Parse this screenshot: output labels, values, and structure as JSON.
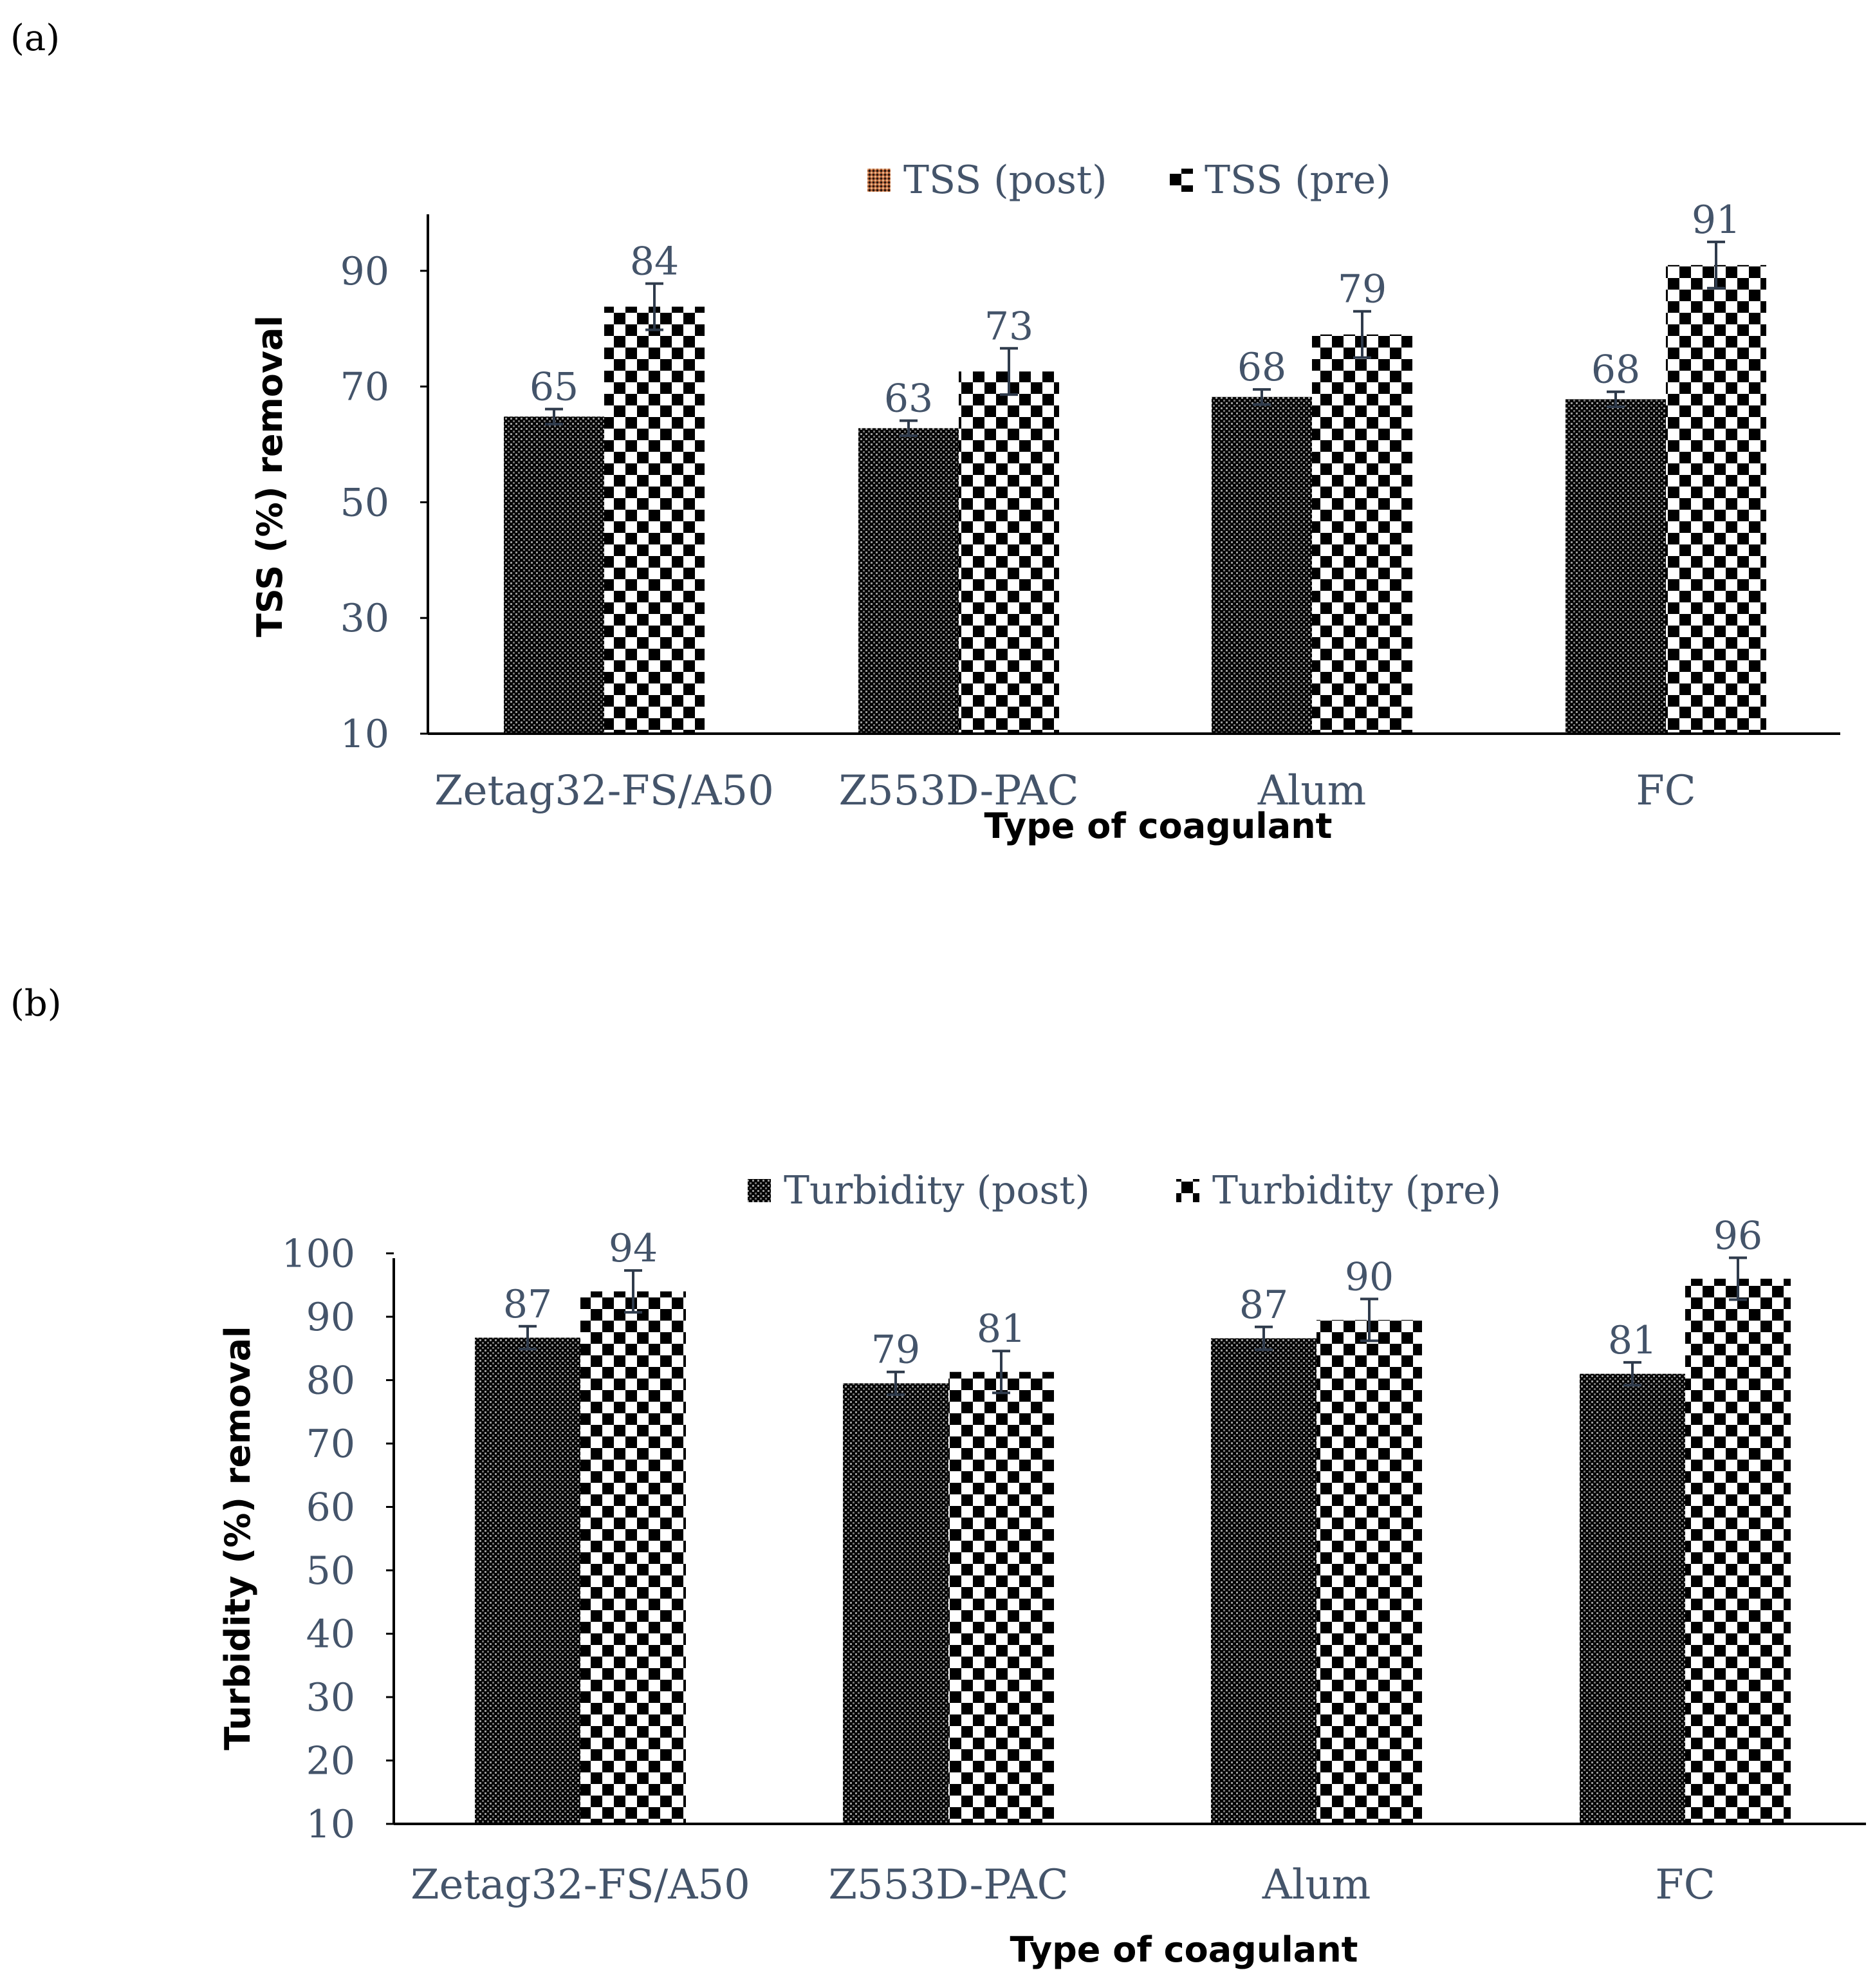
{
  "colors": {
    "dark": "#000000",
    "light": "#ffffff",
    "text": "#44546a",
    "error_bar": "#2f3b4c",
    "legend_post_tss": "#b0603a"
  },
  "chart_data": [
    {
      "type": "bar",
      "panel_label": "(a)",
      "title": "",
      "xlabel": "Type of coagulant",
      "ylabel": "TSS  (%) removal",
      "categories": [
        "Zetag32-FS/A50",
        "Z553D-PAC",
        "Alum",
        "FC"
      ],
      "ylim": [
        10,
        100
      ],
      "yticks": [
        10,
        30,
        50,
        70,
        90
      ],
      "ytick_labels": [
        "10",
        "30",
        "50",
        "70",
        "90"
      ],
      "legend_position": "top-center",
      "series": [
        {
          "name": "TSS (post)",
          "pattern": "fine-dots",
          "values": [
            65,
            63,
            68,
            68
          ],
          "bar_top": [
            64.8,
            62.8,
            68.2,
            67.8
          ],
          "error": [
            1.3,
            1.3,
            1.3,
            1.3
          ],
          "labels": [
            "65",
            "63",
            "68",
            "68"
          ]
        },
        {
          "name": "TSS (pre)",
          "pattern": "checker",
          "values": [
            84,
            73,
            79,
            91
          ],
          "bar_top": [
            83.8,
            72.6,
            79.0,
            91.0
          ],
          "error": [
            4.0,
            4.0,
            4.0,
            4.0
          ],
          "labels": [
            "84",
            "73",
            "79",
            "91"
          ]
        }
      ]
    },
    {
      "type": "bar",
      "panel_label": "(b)",
      "title": "",
      "xlabel": "Type of coagulant",
      "ylabel": "Turbidity   (%) removal",
      "categories": [
        "Zetag32-FS/A50",
        "Z553D-PAC",
        "Alum",
        "FC"
      ],
      "ylim": [
        10,
        100
      ],
      "yticks": [
        10,
        20,
        30,
        40,
        50,
        60,
        70,
        80,
        90,
        100
      ],
      "ytick_labels": [
        "10",
        "20",
        "30",
        "40",
        "50",
        "60",
        "70",
        "80",
        "90",
        "100"
      ],
      "legend_position": "top-center",
      "series": [
        {
          "name": "Turbidity (post)",
          "pattern": "fine-dots",
          "values": [
            87,
            79,
            87,
            81
          ],
          "bar_top": [
            86.7,
            79.5,
            86.6,
            81.0
          ],
          "error": [
            1.8,
            1.8,
            1.8,
            1.8
          ],
          "labels": [
            "87",
            "79",
            "87",
            "81"
          ]
        },
        {
          "name": "Turbidity (pre)",
          "pattern": "checker",
          "values": [
            94,
            81,
            90,
            96
          ],
          "bar_top": [
            94.0,
            81.3,
            89.5,
            96.0
          ],
          "error": [
            3.3,
            3.3,
            3.3,
            3.3
          ],
          "labels": [
            "94",
            "81",
            "90",
            "96"
          ]
        }
      ]
    }
  ]
}
